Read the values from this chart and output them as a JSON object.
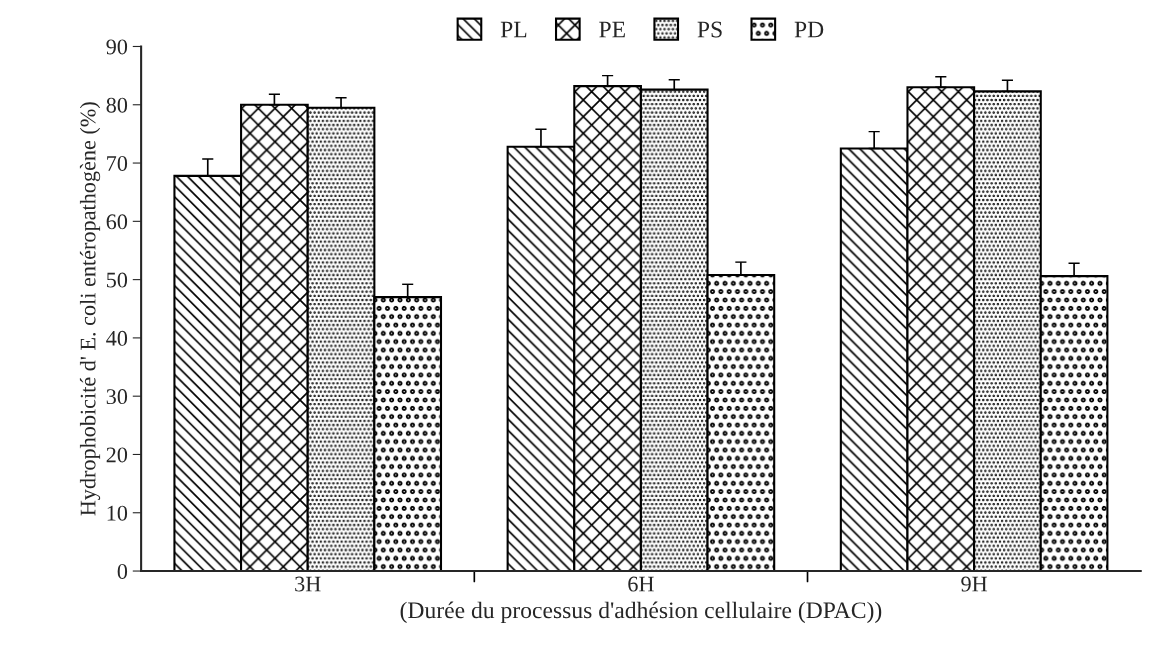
{
  "chart_data": {
    "type": "bar",
    "categories": [
      "3H",
      "6H",
      "9H"
    ],
    "xlabel": "(Durée du processus d'adhésion cellulaire (DPAC))",
    "ylabel": "Hydrophobicité d' E. coli entéropathogène (%)",
    "ylim": [
      0,
      90
    ],
    "yticks": [
      0,
      10,
      20,
      30,
      40,
      50,
      60,
      70,
      80,
      90
    ],
    "grid": false,
    "legend": "top",
    "series": [
      {
        "name": "PL",
        "color": "#000000",
        "values": [
          67.8,
          72.8,
          72.5
        ],
        "errors": [
          [
            67.8,
            70.7
          ],
          [
            72.8,
            75.8
          ],
          [
            72.5,
            75.4
          ]
        ]
      },
      {
        "name": "PE",
        "color": "#000000",
        "values": [
          80.0,
          83.2,
          83.0
        ],
        "errors": [
          [
            80.0,
            81.8
          ],
          [
            83.2,
            85.0
          ],
          [
            83.0,
            84.8
          ]
        ]
      },
      {
        "name": "PS",
        "color": "#000000",
        "values": [
          79.5,
          82.6,
          82.3
        ],
        "errors": [
          [
            79.5,
            81.2
          ],
          [
            82.6,
            84.3
          ],
          [
            82.3,
            84.2
          ]
        ]
      },
      {
        "name": "PD",
        "color": "#000000",
        "values": [
          47.0,
          50.8,
          50.6
        ],
        "errors": [
          [
            47.0,
            49.2
          ],
          [
            50.8,
            53.0
          ],
          [
            50.6,
            52.8
          ]
        ]
      }
    ]
  }
}
